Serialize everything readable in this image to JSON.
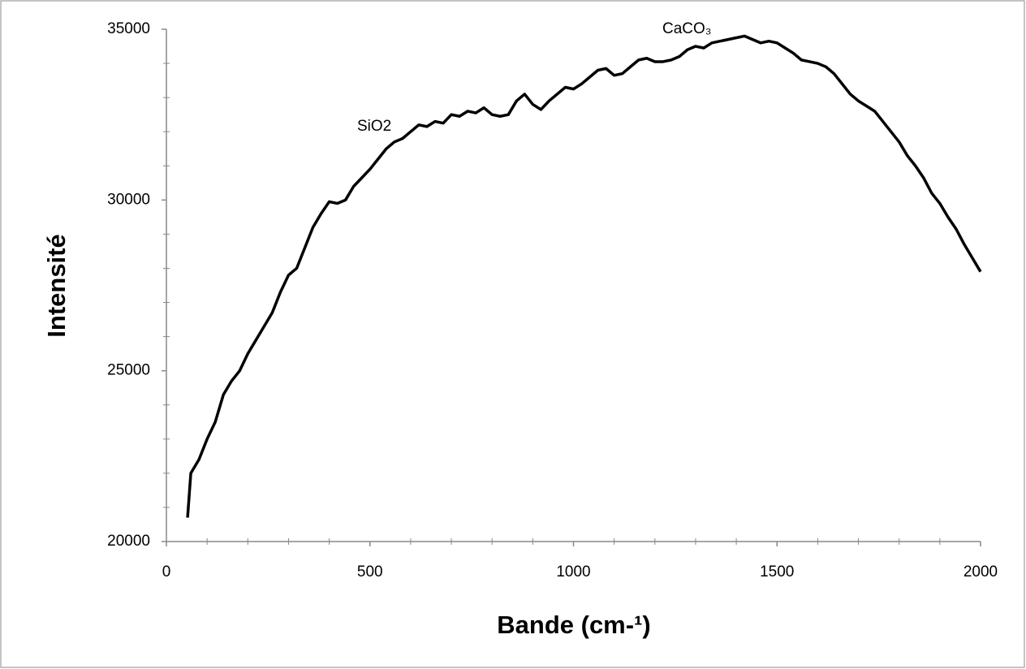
{
  "chart_data": {
    "type": "line",
    "xlabel": "Bande (cm-¹)",
    "ylabel": "Intensité",
    "annotations": [
      "SiO2",
      "CaCO₃"
    ],
    "x": [
      52,
      60,
      80,
      100,
      120,
      140,
      160,
      180,
      200,
      220,
      240,
      260,
      280,
      300,
      320,
      340,
      360,
      380,
      400,
      420,
      440,
      460,
      480,
      500,
      520,
      540,
      560,
      580,
      600,
      620,
      640,
      660,
      680,
      700,
      720,
      740,
      760,
      780,
      800,
      820,
      840,
      860,
      880,
      900,
      920,
      940,
      960,
      980,
      1000,
      1020,
      1040,
      1060,
      1080,
      1100,
      1120,
      1140,
      1160,
      1180,
      1200,
      1220,
      1240,
      1260,
      1280,
      1300,
      1320,
      1340,
      1360,
      1380,
      1400,
      1420,
      1440,
      1460,
      1480,
      1500,
      1520,
      1540,
      1560,
      1580,
      1600,
      1620,
      1640,
      1660,
      1680,
      1700,
      1720,
      1740,
      1760,
      1780,
      1800,
      1820,
      1840,
      1860,
      1880,
      1900,
      1920,
      1940,
      1960,
      1980,
      2000
    ],
    "series": [
      {
        "color": "#000000",
        "values": [
          20700,
          22000,
          22400,
          23000,
          23500,
          24300,
          24700,
          25000,
          25500,
          25900,
          26300,
          26700,
          27300,
          27800,
          28000,
          28600,
          29200,
          29600,
          29950,
          29900,
          30000,
          30400,
          30650,
          30900,
          31200,
          31500,
          31700,
          31800,
          32000,
          32200,
          32150,
          32300,
          32250,
          32500,
          32450,
          32600,
          32550,
          32700,
          32500,
          32450,
          32500,
          32900,
          33100,
          32800,
          32650,
          32900,
          33100,
          33300,
          33250,
          33400,
          33600,
          33800,
          33850,
          33650,
          33700,
          33900,
          34100,
          34150,
          34050,
          34050,
          34100,
          34200,
          34400,
          34500,
          34450,
          34600,
          34650,
          34700,
          34750,
          34800,
          34700,
          34600,
          34650,
          34600,
          34450,
          34300,
          34100,
          34050,
          34000,
          33900,
          33700,
          33400,
          33100,
          32900,
          32750,
          32600,
          32300,
          32000,
          31700,
          31300,
          31000,
          30650,
          30200,
          29900,
          29500,
          29150,
          28700,
          28300,
          27900
        ]
      }
    ],
    "xlim": [
      0,
      2000
    ],
    "xticks": [
      0,
      500,
      1000,
      1500,
      2000
    ],
    "xminorticks": [
      100,
      200,
      300,
      400,
      600,
      700,
      800,
      900,
      1100,
      1200,
      1300,
      1400,
      1600,
      1700,
      1800,
      1900
    ],
    "ylim": [
      20000,
      35000
    ],
    "yticks": [
      20000,
      25000,
      30000,
      35000
    ],
    "yminorticks": [
      21000,
      22000,
      23000,
      24000,
      26000,
      27000,
      28000,
      29000,
      31000,
      32000,
      33000,
      34000
    ]
  }
}
